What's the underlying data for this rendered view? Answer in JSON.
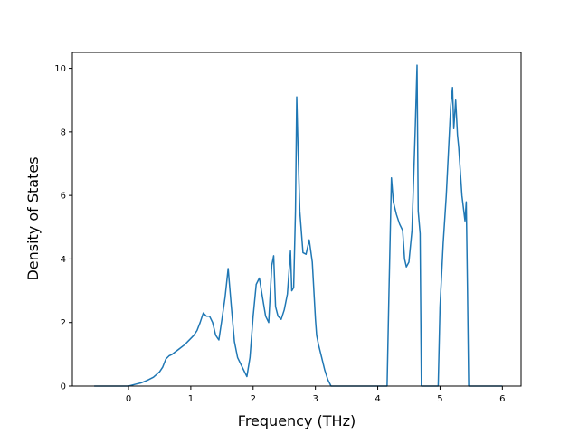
{
  "chart_data": {
    "type": "line",
    "xlabel": "Frequency (THz)",
    "ylabel": "Density of States",
    "xlim": [
      -0.9,
      6.3
    ],
    "ylim": [
      0,
      10.5
    ],
    "xticks": [
      0,
      1,
      2,
      3,
      4,
      5,
      6
    ],
    "yticks": [
      0,
      2,
      4,
      6,
      8,
      10
    ],
    "grid": false,
    "colors": {
      "line": "#1f77b4",
      "axes": "#000000",
      "background": "#ffffff"
    },
    "series": [
      {
        "x": [
          -0.55,
          0.0,
          0.1,
          0.2,
          0.3,
          0.4,
          0.5,
          0.55,
          0.6,
          0.65,
          0.7,
          0.8,
          0.9,
          1.0,
          1.05,
          1.1,
          1.15,
          1.2,
          1.25,
          1.3,
          1.35,
          1.4,
          1.45,
          1.5,
          1.55,
          1.6,
          1.65,
          1.7,
          1.75,
          1.8,
          1.85,
          1.9,
          1.95,
          2.0,
          2.05,
          2.1,
          2.15,
          2.2,
          2.25,
          2.3,
          2.33,
          2.36,
          2.4,
          2.45,
          2.5,
          2.55,
          2.6,
          2.62,
          2.65,
          2.68,
          2.7,
          2.72,
          2.75,
          2.8,
          2.85,
          2.9,
          2.95,
          3.0,
          3.02,
          3.05,
          3.1,
          3.15,
          3.2,
          3.25,
          3.3,
          3.4,
          4.0,
          4.15,
          4.18,
          4.22,
          4.25,
          4.3,
          4.35,
          4.4,
          4.43,
          4.46,
          4.5,
          4.55,
          4.6,
          4.63,
          4.65,
          4.68,
          4.7,
          4.72,
          4.75,
          4.8,
          4.9,
          4.97,
          5.0,
          5.05,
          5.1,
          5.13,
          5.17,
          5.2,
          5.22,
          5.25,
          5.28,
          5.3,
          5.35,
          5.4,
          5.42,
          5.44,
          5.46,
          5.5,
          6.0
        ],
        "y": [
          0.0,
          0.0,
          0.05,
          0.1,
          0.18,
          0.28,
          0.45,
          0.6,
          0.85,
          0.95,
          1.0,
          1.15,
          1.3,
          1.5,
          1.6,
          1.75,
          2.0,
          2.3,
          2.2,
          2.2,
          2.0,
          1.6,
          1.45,
          2.1,
          2.8,
          3.7,
          2.5,
          1.4,
          0.9,
          0.7,
          0.5,
          0.3,
          0.9,
          2.2,
          3.2,
          3.4,
          2.8,
          2.2,
          2.0,
          3.8,
          4.1,
          2.5,
          2.2,
          2.1,
          2.4,
          2.9,
          4.25,
          3.0,
          3.1,
          5.5,
          9.1,
          7.5,
          5.5,
          4.2,
          4.15,
          4.6,
          3.9,
          2.1,
          1.6,
          1.3,
          0.9,
          0.5,
          0.2,
          0.0,
          0.0,
          0.0,
          0.0,
          0.0,
          3.0,
          6.55,
          5.8,
          5.4,
          5.1,
          4.9,
          4.0,
          3.75,
          3.9,
          4.9,
          8.0,
          10.1,
          5.5,
          4.8,
          0.0,
          0.0,
          0.0,
          0.0,
          0.0,
          0.0,
          2.5,
          4.5,
          6.0,
          7.2,
          8.8,
          9.4,
          8.1,
          9.0,
          7.9,
          7.5,
          6.0,
          5.2,
          5.8,
          3.0,
          0.0,
          0.0,
          0.0
        ]
      }
    ]
  }
}
